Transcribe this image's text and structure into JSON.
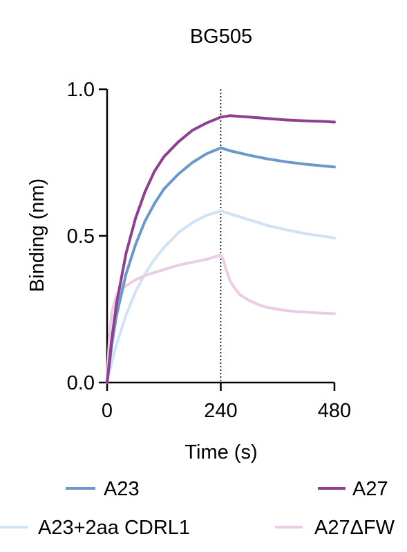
{
  "colors": {
    "A23": "#6a98cc",
    "A27": "#8e3f8f",
    "A23+2aa CDRL1": "#cfe2f6",
    "A27ΔFW": "#ebcce3",
    "axis": "#000000"
  },
  "chart_data": {
    "type": "line",
    "title": "BG505",
    "xlabel": "Time (s)",
    "ylabel": "Binding (nm)",
    "xlim": [
      0,
      480
    ],
    "ylim": [
      0,
      1.0
    ],
    "xticks": [
      "0",
      "240",
      "480"
    ],
    "yticks": [
      "0.0",
      "0.5",
      "1.0"
    ],
    "xtick_values": [
      0,
      240,
      480
    ],
    "ytick_values": [
      0,
      0.5,
      1.0
    ],
    "vline_x": 240,
    "vline_style": "dotted",
    "grid": false,
    "legend_placement": "bottom",
    "series": [
      {
        "name": "A23",
        "x": [
          0,
          10,
          20,
          40,
          60,
          80,
          100,
          120,
          150,
          180,
          210,
          240,
          260,
          300,
          340,
          380,
          420,
          460,
          480
        ],
        "values": [
          0.0,
          0.13,
          0.23,
          0.37,
          0.47,
          0.55,
          0.61,
          0.66,
          0.71,
          0.75,
          0.78,
          0.8,
          0.79,
          0.775,
          0.762,
          0.752,
          0.744,
          0.738,
          0.735
        ]
      },
      {
        "name": "A27",
        "x": [
          0,
          10,
          20,
          40,
          60,
          80,
          100,
          120,
          150,
          180,
          210,
          240,
          260,
          300,
          340,
          380,
          420,
          460,
          480
        ],
        "values": [
          0.0,
          0.15,
          0.27,
          0.44,
          0.56,
          0.65,
          0.72,
          0.77,
          0.82,
          0.86,
          0.885,
          0.905,
          0.91,
          0.905,
          0.9,
          0.895,
          0.892,
          0.89,
          0.888
        ]
      },
      {
        "name": "A23+2aa CDRL1",
        "x": [
          0,
          10,
          20,
          40,
          60,
          80,
          100,
          120,
          150,
          180,
          210,
          240,
          260,
          300,
          340,
          380,
          420,
          460,
          480
        ],
        "values": [
          0.0,
          0.07,
          0.13,
          0.23,
          0.31,
          0.37,
          0.42,
          0.46,
          0.51,
          0.545,
          0.57,
          0.585,
          0.575,
          0.555,
          0.535,
          0.52,
          0.507,
          0.498,
          0.493
        ]
      },
      {
        "name": "A27ΔFW",
        "x": [
          0,
          5,
          10,
          20,
          30,
          40,
          60,
          80,
          100,
          120,
          150,
          180,
          210,
          240,
          245,
          250,
          260,
          270,
          280,
          300,
          320,
          340,
          360,
          380,
          400,
          420,
          440,
          460,
          480
        ],
        "values": [
          0.0,
          0.16,
          0.24,
          0.3,
          0.32,
          0.33,
          0.35,
          0.365,
          0.375,
          0.385,
          0.4,
          0.41,
          0.42,
          0.435,
          0.42,
          0.39,
          0.345,
          0.32,
          0.3,
          0.28,
          0.265,
          0.255,
          0.25,
          0.245,
          0.242,
          0.24,
          0.238,
          0.236,
          0.235
        ]
      }
    ]
  }
}
